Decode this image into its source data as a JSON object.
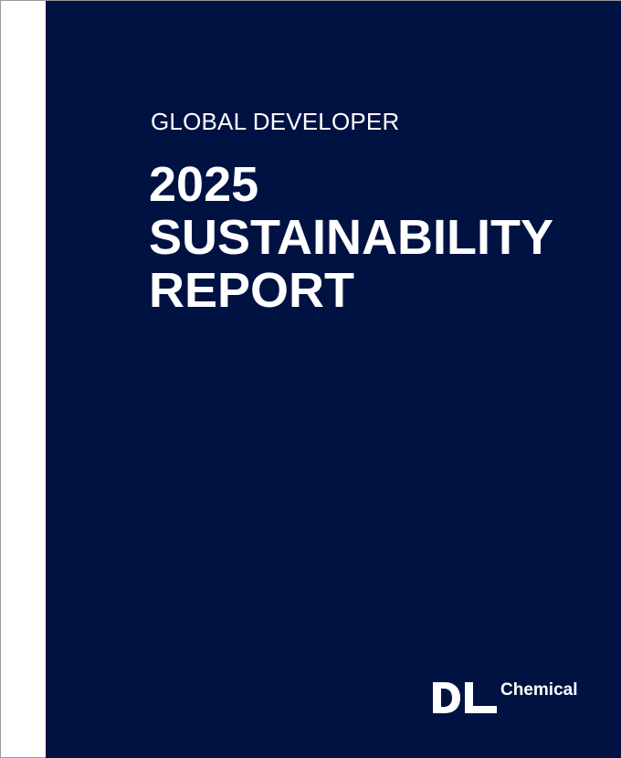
{
  "cover": {
    "eyebrow": "GLOBAL DEVELOPER",
    "title_lines": [
      "2025",
      "SUSTAINABILITY",
      "REPORT"
    ],
    "background_color": "#001242",
    "text_color": "#ffffff"
  },
  "logo": {
    "mark": "DL",
    "name": "Chemical"
  }
}
